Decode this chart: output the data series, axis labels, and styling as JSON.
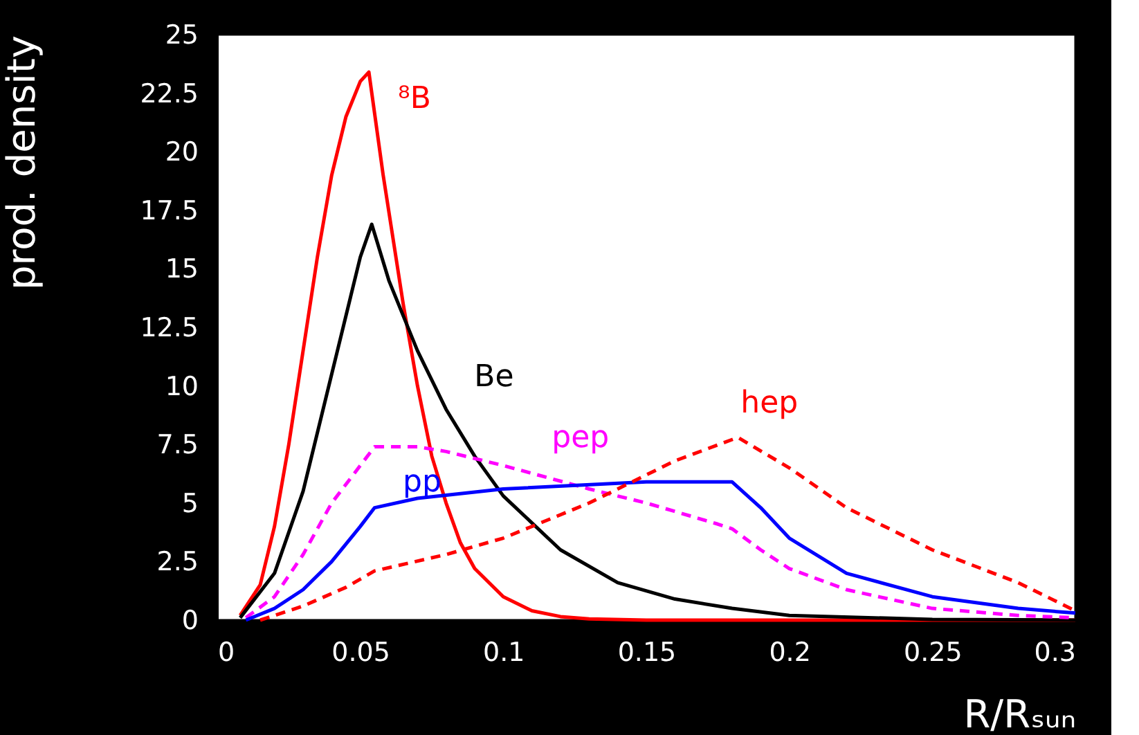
{
  "chart_data": {
    "type": "line",
    "xlabel": "R/Rₛᵤₙ",
    "ylabel": "prod. density",
    "xlim": [
      0,
      0.3
    ],
    "xticks": [
      0,
      0.05,
      0.1,
      0.15,
      0.2,
      0.25,
      0.3
    ],
    "ylim": [
      0,
      25
    ],
    "yticks": [
      0,
      2.5,
      5,
      7.5,
      10,
      12.5,
      15,
      17.5,
      20,
      22.5,
      25
    ],
    "grid": false,
    "series": [
      {
        "name": "⁸B",
        "color": "#ff0000",
        "line_style": "solid",
        "x": [
          0.008,
          0.015,
          0.02,
          0.025,
          0.03,
          0.035,
          0.04,
          0.045,
          0.05,
          0.053,
          0.058,
          0.065,
          0.07,
          0.075,
          0.08,
          0.085,
          0.09,
          0.1,
          0.11,
          0.12,
          0.13,
          0.15,
          0.2,
          0.3
        ],
        "values": [
          0.2,
          1.5,
          4,
          7.5,
          11.5,
          15.5,
          19,
          21.5,
          23,
          23.4,
          19,
          13.5,
          10,
          7,
          5,
          3.3,
          2.2,
          1.0,
          0.4,
          0.15,
          0.05,
          0,
          0,
          0
        ]
      },
      {
        "name": "Be",
        "color": "#000000",
        "line_style": "solid",
        "x": [
          0.008,
          0.02,
          0.03,
          0.04,
          0.05,
          0.054,
          0.06,
          0.07,
          0.08,
          0.09,
          0.1,
          0.12,
          0.14,
          0.16,
          0.18,
          0.2,
          0.25,
          0.3
        ],
        "values": [
          0.1,
          2,
          5.5,
          10.5,
          15.5,
          16.9,
          14.5,
          11.5,
          9,
          7,
          5.3,
          3,
          1.6,
          0.9,
          0.5,
          0.2,
          0.03,
          0
        ]
      },
      {
        "name": "pep",
        "color": "#ff00ff",
        "line_style": "dashed",
        "x": [
          0.01,
          0.02,
          0.03,
          0.04,
          0.055,
          0.07,
          0.08,
          0.1,
          0.13,
          0.15,
          0.175,
          0.18,
          0.19,
          0.2,
          0.22,
          0.25,
          0.28,
          0.3
        ],
        "values": [
          0.1,
          1,
          2.8,
          5,
          7.4,
          7.4,
          7.2,
          6.6,
          5.6,
          5,
          4.1,
          3.9,
          3,
          2.2,
          1.3,
          0.5,
          0.2,
          0.1
        ]
      },
      {
        "name": "pp",
        "color": "#0000ff",
        "line_style": "solid",
        "x": [
          0.01,
          0.02,
          0.03,
          0.04,
          0.05,
          0.055,
          0.07,
          0.1,
          0.15,
          0.18,
          0.19,
          0.2,
          0.22,
          0.25,
          0.28,
          0.3
        ],
        "values": [
          0,
          0.5,
          1.3,
          2.5,
          4,
          4.8,
          5.2,
          5.6,
          5.9,
          5.9,
          4.8,
          3.5,
          2.0,
          1.0,
          0.5,
          0.3
        ]
      },
      {
        "name": "hep",
        "color": "#ff0000",
        "line_style": "dashed",
        "x": [
          0.015,
          0.03,
          0.045,
          0.055,
          0.08,
          0.1,
          0.13,
          0.16,
          0.182,
          0.2,
          0.22,
          0.25,
          0.28,
          0.3
        ],
        "values": [
          0,
          0.6,
          1.4,
          2.1,
          2.8,
          3.5,
          5,
          6.8,
          7.8,
          6.5,
          4.8,
          3,
          1.6,
          0.4
        ]
      }
    ]
  }
}
